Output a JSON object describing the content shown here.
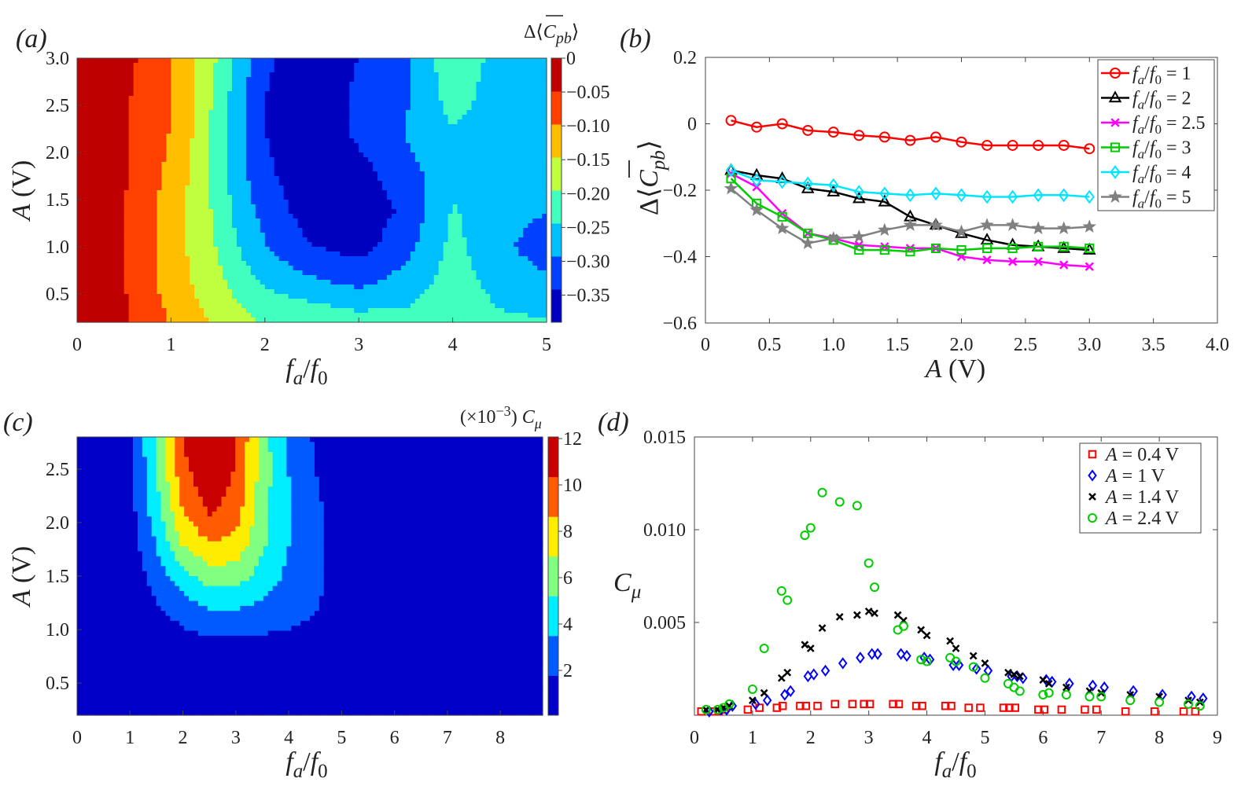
{
  "chart_data": [
    {
      "panel": "(a)",
      "type": "heatmap",
      "title": "",
      "xlabel": "f_a/f_0",
      "ylabel": "A (V)",
      "xlim": [
        0,
        5
      ],
      "ylim": [
        0.2,
        3.0
      ],
      "xticks": [
        "0",
        "1",
        "2",
        "3",
        "4",
        "5"
      ],
      "yticks": [
        "0.5",
        "1.0",
        "1.5",
        "2.0",
        "2.5",
        "3.0"
      ],
      "colorbar": {
        "label": "Δ⟨C̄pb⟩",
        "ticks": [
          "0",
          "−0.05",
          "−0.10",
          "−0.15",
          "−0.20",
          "−0.25",
          "−0.30",
          "−0.35"
        ],
        "range": [
          -0.39,
          0.0
        ]
      },
      "x": [
        0,
        0.5,
        1,
        1.25,
        1.5,
        1.75,
        2,
        2.5,
        3,
        3.5,
        4,
        4.5,
        5
      ],
      "y": [
        0.2,
        0.4,
        0.6,
        1.0,
        1.4,
        1.8,
        2.2,
        2.6,
        3.0
      ],
      "z": [
        [
          -0.01,
          -0.04,
          -0.1,
          -0.13,
          -0.16,
          -0.18,
          -0.2,
          -0.22,
          -0.22,
          -0.22,
          -0.2,
          -0.23,
          -0.24
        ],
        [
          -0.02,
          -0.04,
          -0.11,
          -0.14,
          -0.17,
          -0.2,
          -0.22,
          -0.24,
          -0.26,
          -0.25,
          -0.21,
          -0.25,
          -0.26
        ],
        [
          -0.01,
          -0.05,
          -0.12,
          -0.15,
          -0.18,
          -0.22,
          -0.25,
          -0.28,
          -0.3,
          -0.27,
          -0.22,
          -0.26,
          -0.28
        ],
        [
          -0.01,
          -0.05,
          -0.12,
          -0.16,
          -0.2,
          -0.25,
          -0.29,
          -0.34,
          -0.36,
          -0.31,
          -0.23,
          -0.28,
          -0.32
        ],
        [
          -0.01,
          -0.05,
          -0.12,
          -0.16,
          -0.21,
          -0.27,
          -0.31,
          -0.37,
          -0.38,
          -0.33,
          -0.24,
          -0.27,
          -0.29
        ],
        [
          -0.01,
          -0.04,
          -0.11,
          -0.16,
          -0.22,
          -0.28,
          -0.33,
          -0.38,
          -0.36,
          -0.31,
          -0.26,
          -0.26,
          -0.27
        ],
        [
          -0.01,
          -0.04,
          -0.1,
          -0.15,
          -0.22,
          -0.28,
          -0.34,
          -0.39,
          -0.33,
          -0.29,
          -0.25,
          -0.27,
          -0.27
        ],
        [
          -0.01,
          -0.04,
          -0.1,
          -0.15,
          -0.21,
          -0.28,
          -0.34,
          -0.39,
          -0.33,
          -0.3,
          -0.22,
          -0.27,
          -0.27
        ],
        [
          -0.01,
          -0.03,
          -0.1,
          -0.14,
          -0.2,
          -0.27,
          -0.33,
          -0.38,
          -0.34,
          -0.3,
          -0.21,
          -0.26,
          -0.26
        ]
      ]
    },
    {
      "panel": "(b)",
      "type": "line",
      "xlabel": "A (V)",
      "ylabel": "Δ⟨C̄pb⟩",
      "xlim": [
        0,
        4.0
      ],
      "ylim": [
        -0.6,
        0.2
      ],
      "xticks": [
        "0",
        "0.5",
        "1.0",
        "1.5",
        "2.0",
        "2.5",
        "3.0",
        "3.5",
        "4.0"
      ],
      "yticks": [
        "0.2",
        "0",
        "−0.2",
        "−0.4",
        "−0.6"
      ],
      "legend_position": "top-right",
      "x": [
        0.2,
        0.4,
        0.6,
        0.8,
        1.0,
        1.2,
        1.4,
        1.6,
        1.8,
        2.0,
        2.2,
        2.4,
        2.6,
        2.8,
        3.0
      ],
      "series": [
        {
          "name": "fa/f0 = 1",
          "legend_main": "f",
          "legend_sub": "a",
          "legend_main2": "/f",
          "legend_sub2": "0",
          "legend_val": " = 1",
          "color": "#ff0000",
          "marker": "circle",
          "values": [
            0.01,
            -0.01,
            0.0,
            -0.02,
            -0.025,
            -0.035,
            -0.04,
            -0.05,
            -0.04,
            -0.055,
            -0.065,
            -0.065,
            -0.065,
            -0.065,
            -0.075
          ]
        },
        {
          "name": "fa/f0 = 2",
          "legend_main": "f",
          "legend_sub": "a",
          "legend_main2": "/f",
          "legend_sub2": "0",
          "legend_val": " = 2",
          "color": "#000000",
          "marker": "triangle",
          "values": [
            -0.14,
            -0.155,
            -0.165,
            -0.195,
            -0.205,
            -0.225,
            -0.235,
            -0.28,
            -0.305,
            -0.33,
            -0.35,
            -0.365,
            -0.37,
            -0.375,
            -0.38
          ]
        },
        {
          "name": "fa/f0 = 2.5",
          "legend_main": "f",
          "legend_sub": "a",
          "legend_main2": "/f",
          "legend_sub2": "0",
          "legend_val": " = 2.5",
          "color": "#ff00ff",
          "marker": "x",
          "values": [
            -0.15,
            -0.19,
            -0.27,
            -0.33,
            -0.345,
            -0.365,
            -0.37,
            -0.375,
            -0.375,
            -0.4,
            -0.41,
            -0.415,
            -0.415,
            -0.425,
            -0.43
          ]
        },
        {
          "name": "fa/f0 = 3",
          "legend_main": "f",
          "legend_sub": "a",
          "legend_main2": "/f",
          "legend_sub2": "0",
          "legend_val": " = 3",
          "color": "#00cc00",
          "marker": "square",
          "values": [
            -0.165,
            -0.24,
            -0.28,
            -0.33,
            -0.35,
            -0.38,
            -0.38,
            -0.385,
            -0.375,
            -0.38,
            -0.375,
            -0.375,
            -0.37,
            -0.37,
            -0.375
          ]
        },
        {
          "name": "fa/f0 = 4",
          "legend_main": "f",
          "legend_sub": "a",
          "legend_main2": "/f",
          "legend_sub2": "0",
          "legend_val": " = 4",
          "color": "#00e5ff",
          "marker": "diamond",
          "values": [
            -0.14,
            -0.17,
            -0.175,
            -0.18,
            -0.185,
            -0.205,
            -0.21,
            -0.215,
            -0.21,
            -0.215,
            -0.22,
            -0.22,
            -0.215,
            -0.215,
            -0.22
          ]
        },
        {
          "name": "fa/f0 = 5",
          "legend_main": "f",
          "legend_sub": "a",
          "legend_main2": "/f",
          "legend_sub2": "0",
          "legend_val": " = 5",
          "color": "#808080",
          "marker": "star",
          "values": [
            -0.195,
            -0.26,
            -0.315,
            -0.36,
            -0.345,
            -0.34,
            -0.32,
            -0.305,
            -0.305,
            -0.325,
            -0.305,
            -0.305,
            -0.315,
            -0.315,
            -0.31
          ]
        }
      ]
    },
    {
      "panel": "(c)",
      "type": "heatmap",
      "xlabel": "f_a/f_0",
      "ylabel": "A (V)",
      "xlim": [
        0,
        8.8
      ],
      "ylim": [
        0.2,
        2.8
      ],
      "xticks": [
        "0",
        "1",
        "2",
        "3",
        "4",
        "5",
        "6",
        "7",
        "8"
      ],
      "yticks": [
        "0.5",
        "1.0",
        "1.5",
        "2.0",
        "2.5"
      ],
      "colorbar": {
        "label": "(×10−3) Cμ",
        "ticks": [
          "12",
          "10",
          "8",
          "6",
          "4",
          "2"
        ],
        "range": [
          0,
          12
        ]
      },
      "x": [
        0,
        1,
        1.5,
        2,
        2.5,
        3,
        3.5,
        4,
        4.5,
        5,
        5.5,
        6,
        7,
        8.8
      ],
      "y": [
        0.2,
        0.6,
        0.9,
        1.2,
        1.5,
        1.8,
        2.1,
        2.4,
        2.8
      ],
      "z": [
        [
          0,
          0,
          0,
          0,
          0,
          0,
          0,
          0,
          0,
          0,
          0,
          0,
          0,
          0
        ],
        [
          0,
          0,
          0,
          0,
          0,
          0,
          0,
          0,
          0,
          0,
          0,
          0,
          0,
          0
        ],
        [
          0,
          0,
          0.5,
          1.2,
          1.5,
          1.5,
          1.4,
          1.3,
          1.2,
          1.0,
          0.5,
          0,
          0,
          0
        ],
        [
          0,
          0.3,
          1.5,
          2.5,
          3.5,
          3.5,
          3.0,
          2.5,
          1.8,
          1.2,
          0.8,
          0,
          0,
          0
        ],
        [
          0,
          0.5,
          2.5,
          4.5,
          6.0,
          6.0,
          4.5,
          3.0,
          2.0,
          1.3,
          0.8,
          0,
          0,
          0
        ],
        [
          0,
          0.8,
          3.5,
          7.0,
          8.5,
          8.0,
          5.5,
          3.5,
          2.0,
          1.2,
          0.6,
          0,
          0,
          0
        ],
        [
          0,
          1.0,
          4.5,
          8.5,
          10.5,
          9.5,
          5.5,
          3.5,
          2.0,
          1.1,
          0.4,
          0,
          0,
          0
        ],
        [
          0,
          1.1,
          5.0,
          9.5,
          11.5,
          10.0,
          6.0,
          3.5,
          1.8,
          0.9,
          0.2,
          0,
          0,
          0
        ],
        [
          0,
          1.2,
          5.5,
          10.5,
          12.5,
          10.5,
          6.0,
          3.0,
          1.5,
          0.7,
          0,
          0,
          0,
          0
        ]
      ]
    },
    {
      "panel": "(d)",
      "type": "scatter",
      "xlabel": "f_a/f_0",
      "ylabel": "Cμ",
      "xlim": [
        0,
        9
      ],
      "ylim": [
        0,
        0.015
      ],
      "xticks": [
        "0",
        "1",
        "2",
        "3",
        "4",
        "5",
        "6",
        "7",
        "8",
        "9"
      ],
      "yticks": [
        "0.015",
        "0.010",
        "0.005"
      ],
      "legend_position": "top-right",
      "x": [
        0.2,
        0.4,
        0.5,
        0.6,
        1.0,
        1.2,
        1.5,
        1.6,
        1.9,
        2.0,
        2.2,
        2.5,
        2.8,
        3.0,
        3.1,
        3.5,
        3.6,
        3.9,
        4.0,
        4.4,
        4.5,
        4.8,
        5.0,
        5.4,
        5.5,
        5.6,
        6.0,
        6.1,
        6.4,
        6.8,
        7.0,
        7.5,
        8.0,
        8.5,
        8.7
      ],
      "series": [
        {
          "name": "A = 0.4 V",
          "legend_val": " = 0.4 V",
          "color": "#ff0000",
          "marker": "square",
          "values": [
            0.0002,
            0.0002,
            0.0002,
            0.0003,
            0.0003,
            0.0004,
            0.0004,
            0.0005,
            0.0005,
            0.0005,
            0.0005,
            0.0006,
            0.0006,
            0.0006,
            0.0006,
            0.0006,
            0.0006,
            0.0005,
            0.0005,
            0.0005,
            0.0005,
            0.0004,
            0.0004,
            0.0004,
            0.0004,
            0.0004,
            0.0003,
            0.0003,
            0.0003,
            0.0003,
            0.0003,
            0.0002,
            0.0002,
            0.0002,
            0.0002
          ]
        },
        {
          "name": "A = 1 V",
          "legend_val": " = 1 V",
          "color": "#0000ff",
          "marker": "diamond",
          "values": [
            0.0002,
            0.0003,
            0.0003,
            0.0005,
            0.0006,
            0.0008,
            0.0011,
            0.0013,
            0.0021,
            0.0022,
            0.0024,
            0.0028,
            0.0031,
            0.0033,
            0.0033,
            0.0033,
            0.0032,
            0.0031,
            0.003,
            0.0027,
            0.0027,
            0.0025,
            0.0024,
            0.0021,
            0.0021,
            0.002,
            0.0019,
            0.0018,
            0.0017,
            0.0016,
            0.0015,
            0.0013,
            0.0011,
            0.001,
            0.0009
          ]
        },
        {
          "name": "A = 1.4 V",
          "legend_val": " = 1.4 V",
          "color": "#000000",
          "marker": "x",
          "values": [
            0.0003,
            0.0003,
            0.0004,
            0.0005,
            0.0008,
            0.0012,
            0.002,
            0.0023,
            0.0038,
            0.0036,
            0.0047,
            0.0053,
            0.0054,
            0.0056,
            0.0055,
            0.0054,
            0.0051,
            0.0046,
            0.0043,
            0.004,
            0.0036,
            0.0032,
            0.0028,
            0.0023,
            0.0022,
            0.0021,
            0.0019,
            0.0017,
            0.0015,
            0.0013,
            0.0012,
            0.0011,
            0.001,
            0.0008,
            0.0007
          ]
        },
        {
          "name": "A = 2.4 V",
          "legend_val": " = 2.4 V",
          "color": "#00cc00",
          "marker": "circle",
          "values": [
            0.0003,
            0.0003,
            0.0004,
            0.0006,
            0.0014,
            0.0036,
            0.0067,
            0.0062,
            0.0097,
            0.0101,
            0.012,
            0.0115,
            0.0113,
            0.0082,
            0.0069,
            0.0046,
            0.0048,
            0.003,
            0.0029,
            0.0031,
            0.0029,
            0.0026,
            0.002,
            0.0017,
            0.0015,
            0.0013,
            0.0011,
            0.0012,
            0.0011,
            0.001,
            0.001,
            0.0008,
            0.0007,
            0.0006,
            0.0005
          ]
        }
      ]
    }
  ]
}
